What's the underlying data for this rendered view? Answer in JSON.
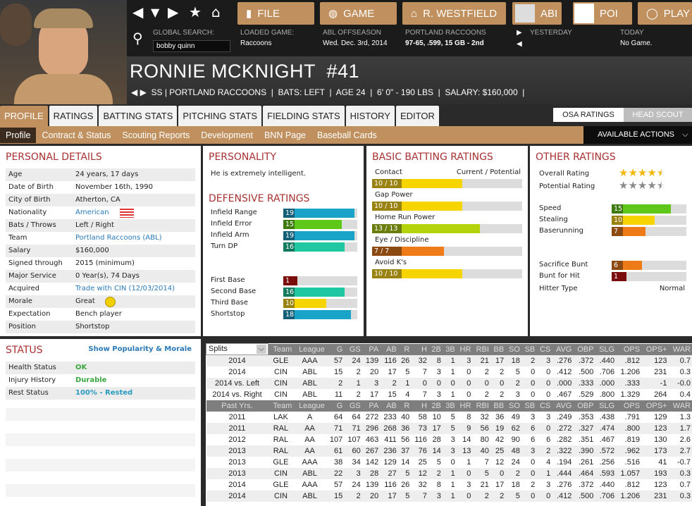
{
  "nav": {
    "buttons": [
      {
        "label": "FILE",
        "icon": "file-icon"
      },
      {
        "label": "GAME",
        "icon": "globe-icon"
      },
      {
        "label": "R. WESTFIELD",
        "icon": "home-icon"
      },
      {
        "label": "ABI",
        "icon": "team-logo"
      },
      {
        "label": "POI",
        "icon": "team-logo"
      },
      {
        "label": "PLAY",
        "icon": "baseball-icon"
      }
    ]
  },
  "info": {
    "search_label": "GLOBAL SEARCH:",
    "search_value": "bobby quinn",
    "loaded_label": "LOADED GAME:",
    "loaded_value": "Raccoons",
    "season_label": "ABL OFFSEASON",
    "season_value": "Wed. Dec. 3rd, 2014",
    "team_label": "PORTLAND RACCOONS",
    "team_value": "97-65, .599, 15 GB - 2nd",
    "yesterday_label": "YESTERDAY",
    "today_label": "TODAY",
    "today_value": "No Game."
  },
  "player": {
    "name": "RONNIE MCKNIGHT  #41",
    "sub": "SS | PORTLAND RACCOONS  |  BATS: LEFT  |  AGE 24  |  6' 0\" - 190 LBS  |  SALARY: $160,000  |"
  },
  "tabs": [
    "PROFILE",
    "RATINGS",
    "BATTING STATS",
    "PITCHING STATS",
    "FIELDING STATS",
    "HISTORY",
    "EDITOR"
  ],
  "rating_toggle": [
    "OSA RATINGS",
    "HEAD SCOUT"
  ],
  "subnav": [
    "Profile",
    "Contract & Status",
    "Scouting Reports",
    "Development",
    "BNN Page",
    "Baseball Cards"
  ],
  "actions_label": "AVAILABLE ACTIONS",
  "personal": {
    "title": "PERSONAL DETAILS",
    "rows": [
      [
        "Age",
        "24 years, 17 days"
      ],
      [
        "Date of Birth",
        "November 16th, 1990"
      ],
      [
        "City of Birth",
        "Atherton, CA"
      ],
      [
        "Nationality",
        "American"
      ],
      [
        "Bats / Throws",
        "Left / Right"
      ],
      [
        "Team",
        "Portland Raccoons (ABL)"
      ],
      [
        "Salary",
        "$160,000"
      ],
      [
        "Signed through",
        "2015 (minimum)"
      ],
      [
        "Major Service",
        "0 Year(s), 74 Days"
      ],
      [
        "Acquired",
        "Trade with CIN (12/03/2014)"
      ],
      [
        "Morale",
        "Great"
      ],
      [
        "Expectation",
        "Bench player"
      ],
      [
        "Position",
        "Shortstop"
      ]
    ]
  },
  "personality": {
    "title": "PERSONALITY",
    "text": "He is extremely intelligent."
  },
  "defense": {
    "title": "DEFENSIVE RATINGS",
    "items": [
      {
        "label": "Infield Range",
        "value": 19
      },
      {
        "label": "Infield Error",
        "value": 15
      },
      {
        "label": "Infield Arm",
        "value": 19
      },
      {
        "label": "Turn DP",
        "value": 16
      },
      {
        "label": "First Base",
        "value": 1
      },
      {
        "label": "Second Base",
        "value": 16
      },
      {
        "label": "Third Base",
        "value": 10
      },
      {
        "label": "Shortstop",
        "value": 18
      }
    ]
  },
  "batting": {
    "title": "BASIC BATTING RATINGS",
    "header": "Current / Potential",
    "items": [
      {
        "label": "Contact",
        "text": "10 / 10",
        "value": 10
      },
      {
        "label": "Gap Power",
        "text": "10 / 10",
        "value": 10
      },
      {
        "label": "Home Run Power",
        "text": "13 / 13",
        "value": 13
      },
      {
        "label": "Eye / Discipline",
        "text": "7 / 7",
        "value": 7
      },
      {
        "label": "Avoid K's",
        "text": "10 / 10",
        "value": 10
      }
    ]
  },
  "other": {
    "title": "OTHER RATINGS",
    "overall_label": "Overall Rating",
    "overall_stars": 4.5,
    "potential_label": "Potential Rating",
    "potential_stars": 4.5,
    "items": [
      {
        "label": "Speed",
        "value": 15
      },
      {
        "label": "Stealing",
        "value": 10
      },
      {
        "label": "Baserunning",
        "value": 7
      },
      {
        "label": "Sacrifice Bunt",
        "value": 6
      },
      {
        "label": "Bunt for Hit",
        "value": 1
      }
    ],
    "hitter_label": "Hitter Type",
    "hitter_value": "Normal"
  },
  "status": {
    "title": "STATUS",
    "link": "Show Popularity & Morale",
    "rows": [
      [
        "Health Status",
        "OK"
      ],
      [
        "Injury History",
        "Durable"
      ],
      [
        "Rest Status",
        "100% - Rested"
      ]
    ]
  },
  "stats": {
    "split_select": "Splits",
    "columns": [
      "Team",
      "League",
      "G",
      "GS",
      "PA",
      "AB",
      "R",
      "H",
      "2B",
      "3B",
      "HR",
      "RBI",
      "BB",
      "SO",
      "SB",
      "CS",
      "AVG",
      "OBP",
      "SLG",
      "OPS",
      "OPS+",
      "WAR"
    ],
    "splits": [
      [
        "2014",
        "GLE",
        "AAA",
        "57",
        "24",
        "139",
        "116",
        "26",
        "32",
        "8",
        "1",
        "3",
        "21",
        "17",
        "18",
        "2",
        "3",
        ".276",
        ".372",
        ".440",
        ".812",
        "123",
        "0.7"
      ],
      [
        "2014",
        "CIN",
        "ABL",
        "15",
        "2",
        "20",
        "17",
        "5",
        "7",
        "3",
        "1",
        "0",
        "2",
        "2",
        "5",
        "0",
        "0",
        ".412",
        ".500",
        ".706",
        "1.206",
        "231",
        "0.3"
      ],
      [
        "2014 vs. Left",
        "CIN",
        "ABL",
        "2",
        "1",
        "3",
        "2",
        "1",
        "0",
        "0",
        "0",
        "0",
        "0",
        "0",
        "2",
        "0",
        "0",
        ".000",
        ".333",
        ".000",
        ".333",
        "-1",
        "-0.0"
      ],
      [
        "2014 vs. Right",
        "CIN",
        "ABL",
        "11",
        "2",
        "17",
        "15",
        "4",
        "7",
        "3",
        "1",
        "0",
        "2",
        "2",
        "3",
        "0",
        "0",
        ".467",
        ".529",
        ".800",
        "1.329",
        "264",
        "0.4"
      ]
    ],
    "past_label": "Past Yrs.",
    "past": [
      [
        "2011",
        "LAK",
        "A",
        "64",
        "64",
        "272",
        "233",
        "40",
        "58",
        "10",
        "5",
        "8",
        "32",
        "36",
        "49",
        "3",
        "3",
        ".249",
        ".353",
        ".438",
        ".791",
        "129",
        "1.3"
      ],
      [
        "2011",
        "RAL",
        "AA",
        "71",
        "71",
        "296",
        "268",
        "36",
        "73",
        "17",
        "5",
        "9",
        "56",
        "19",
        "62",
        "6",
        "0",
        ".272",
        ".327",
        ".474",
        ".800",
        "123",
        "1.7"
      ],
      [
        "2012",
        "RAL",
        "AA",
        "107",
        "107",
        "463",
        "411",
        "56",
        "116",
        "28",
        "3",
        "14",
        "80",
        "42",
        "90",
        "6",
        "6",
        ".282",
        ".351",
        ".467",
        ".819",
        "130",
        "2.6"
      ],
      [
        "2013",
        "RAL",
        "AA",
        "61",
        "60",
        "267",
        "236",
        "37",
        "76",
        "14",
        "3",
        "13",
        "40",
        "25",
        "48",
        "3",
        "2",
        ".322",
        ".390",
        ".572",
        ".962",
        "173",
        "2.7"
      ],
      [
        "2013",
        "GLE",
        "AAA",
        "38",
        "34",
        "142",
        "129",
        "14",
        "25",
        "5",
        "0",
        "1",
        "7",
        "12",
        "24",
        "0",
        "4",
        ".194",
        ".261",
        ".256",
        ".516",
        "41",
        "-0.7"
      ],
      [
        "2013",
        "CIN",
        "ABL",
        "22",
        "3",
        "28",
        "27",
        "5",
        "12",
        "2",
        "1",
        "0",
        "5",
        "0",
        "2",
        "0",
        "1",
        ".444",
        ".464",
        ".593",
        "1.057",
        "193",
        "0.3"
      ],
      [
        "2014",
        "GLE",
        "AAA",
        "57",
        "24",
        "139",
        "116",
        "26",
        "32",
        "8",
        "1",
        "3",
        "21",
        "17",
        "18",
        "2",
        "3",
        ".276",
        ".372",
        ".440",
        ".812",
        "123",
        "0.7"
      ],
      [
        "2014",
        "CIN",
        "ABL",
        "15",
        "2",
        "20",
        "17",
        "5",
        "7",
        "3",
        "1",
        "0",
        "2",
        "2",
        "5",
        "0",
        "0",
        ".412",
        ".500",
        ".706",
        "1.206",
        "231",
        "0.3"
      ]
    ]
  },
  "colors": {
    "accent": "#c0915f",
    "heading": "#a83232",
    "link": "#2a7ab8",
    "ok": "#3aa640"
  }
}
